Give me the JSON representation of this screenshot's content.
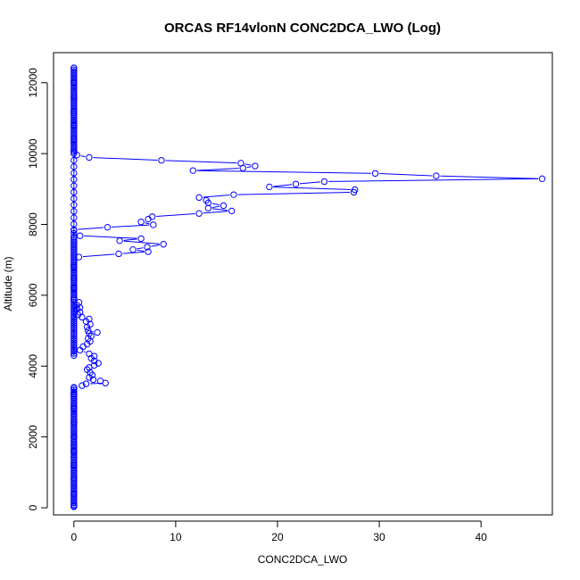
{
  "chart_data": {
    "type": "scatter",
    "title": "ORCAS RF14vlonN CONC2DCA_LWO (Log)",
    "xlabel": "CONC2DCA_LWO",
    "ylabel": "Altitude (m)",
    "xlim": [
      -2,
      47
    ],
    "ylim": [
      -200,
      12850
    ],
    "xticks": [
      "0",
      "10",
      "20",
      "30",
      "40"
    ],
    "xtick_values": [
      0,
      10,
      20,
      30,
      40
    ],
    "yticks": [
      "0",
      "2000",
      "4000",
      "6000",
      "8000",
      "10000",
      "12000"
    ],
    "ytick_values": [
      0,
      2000,
      4000,
      6000,
      8000,
      10000,
      12000
    ],
    "grid": false,
    "series_color": "#0000ff",
    "connected": true,
    "points": [
      {
        "x": 0,
        "y": 50
      },
      {
        "x": 0,
        "y": 400
      },
      {
        "x": 0,
        "y": 800
      },
      {
        "x": 0,
        "y": 1200
      },
      {
        "x": 0,
        "y": 1600
      },
      {
        "x": 0,
        "y": 2000
      },
      {
        "x": 0,
        "y": 2400
      },
      {
        "x": 0,
        "y": 2800
      },
      {
        "x": 0,
        "y": 3200
      },
      {
        "x": 0,
        "y": 3400
      },
      {
        "x": 0.8,
        "y": 3450
      },
      {
        "x": 1.2,
        "y": 3500
      },
      {
        "x": 3.1,
        "y": 3520
      },
      {
        "x": 2.6,
        "y": 3580
      },
      {
        "x": 1.9,
        "y": 3620
      },
      {
        "x": 1.5,
        "y": 3680
      },
      {
        "x": 1.8,
        "y": 3750
      },
      {
        "x": 1.6,
        "y": 3820
      },
      {
        "x": 1.3,
        "y": 3900
      },
      {
        "x": 1.5,
        "y": 3960
      },
      {
        "x": 2.0,
        "y": 4020
      },
      {
        "x": 2.4,
        "y": 4080
      },
      {
        "x": 2.0,
        "y": 4150
      },
      {
        "x": 1.7,
        "y": 4220
      },
      {
        "x": 2.0,
        "y": 4280
      },
      {
        "x": 1.5,
        "y": 4350
      },
      {
        "x": 0.6,
        "y": 4450
      },
      {
        "x": 0.9,
        "y": 4550
      },
      {
        "x": 1.3,
        "y": 4620
      },
      {
        "x": 1.6,
        "y": 4700
      },
      {
        "x": 1.4,
        "y": 4780
      },
      {
        "x": 1.7,
        "y": 4850
      },
      {
        "x": 1.5,
        "y": 4920
      },
      {
        "x": 2.3,
        "y": 4950
      },
      {
        "x": 1.4,
        "y": 5000
      },
      {
        "x": 1.3,
        "y": 5100
      },
      {
        "x": 1.6,
        "y": 5180
      },
      {
        "x": 1.2,
        "y": 5260
      },
      {
        "x": 1.5,
        "y": 5330
      },
      {
        "x": 0.8,
        "y": 5380
      },
      {
        "x": 0.4,
        "y": 5450
      },
      {
        "x": 0.6,
        "y": 5520
      },
      {
        "x": 0.3,
        "y": 5620
      },
      {
        "x": 0.6,
        "y": 5650
      },
      {
        "x": 0.3,
        "y": 5720
      },
      {
        "x": 0.5,
        "y": 5800
      },
      {
        "x": 0,
        "y": 5900
      },
      {
        "x": 0,
        "y": 6200
      },
      {
        "x": 0,
        "y": 6500
      },
      {
        "x": 0,
        "y": 6800
      },
      {
        "x": 0.5,
        "y": 7080
      },
      {
        "x": 4.4,
        "y": 7170
      },
      {
        "x": 7.3,
        "y": 7230
      },
      {
        "x": 5.8,
        "y": 7290
      },
      {
        "x": 7.2,
        "y": 7360
      },
      {
        "x": 8.8,
        "y": 7440
      },
      {
        "x": 4.5,
        "y": 7540
      },
      {
        "x": 6.6,
        "y": 7600
      },
      {
        "x": 0.6,
        "y": 7680
      },
      {
        "x": 0,
        "y": 7750
      },
      {
        "x": 0,
        "y": 7850
      },
      {
        "x": 3.3,
        "y": 7920
      },
      {
        "x": 7.8,
        "y": 7990
      },
      {
        "x": 6.6,
        "y": 8070
      },
      {
        "x": 7.3,
        "y": 8150
      },
      {
        "x": 7.7,
        "y": 8220
      },
      {
        "x": 12.3,
        "y": 8310
      },
      {
        "x": 15.5,
        "y": 8380
      },
      {
        "x": 13.2,
        "y": 8460
      },
      {
        "x": 14.7,
        "y": 8530
      },
      {
        "x": 13.2,
        "y": 8610
      },
      {
        "x": 13.0,
        "y": 8680
      },
      {
        "x": 12.3,
        "y": 8760
      },
      {
        "x": 15.7,
        "y": 8840
      },
      {
        "x": 27.5,
        "y": 8910
      },
      {
        "x": 27.6,
        "y": 8980
      },
      {
        "x": 19.2,
        "y": 9060
      },
      {
        "x": 21.8,
        "y": 9140
      },
      {
        "x": 24.6,
        "y": 9210
      },
      {
        "x": 46.0,
        "y": 9290
      },
      {
        "x": 35.6,
        "y": 9370
      },
      {
        "x": 29.6,
        "y": 9440
      },
      {
        "x": 11.7,
        "y": 9520
      },
      {
        "x": 16.6,
        "y": 9590
      },
      {
        "x": 17.8,
        "y": 9650
      },
      {
        "x": 16.4,
        "y": 9730
      },
      {
        "x": 8.6,
        "y": 9810
      },
      {
        "x": 1.5,
        "y": 9890
      },
      {
        "x": 0.3,
        "y": 9960
      },
      {
        "x": 0,
        "y": 10050
      },
      {
        "x": 0,
        "y": 10400
      },
      {
        "x": 0,
        "y": 10800
      },
      {
        "x": 0,
        "y": 11200
      },
      {
        "x": 0,
        "y": 11600
      },
      {
        "x": 0,
        "y": 12000
      },
      {
        "x": 0,
        "y": 12420
      }
    ],
    "dense_columns": [
      {
        "x": 0,
        "y_from": 30,
        "y_to": 3420,
        "step": 55
      },
      {
        "x": 0,
        "y_from": 4300,
        "y_to": 5900,
        "step": 60
      },
      {
        "x": 0,
        "y_from": 5900,
        "y_to": 7650,
        "step": 55
      },
      {
        "x": 0,
        "y_from": 7650,
        "y_to": 9950,
        "step": 180
      },
      {
        "x": 0,
        "y_from": 10000,
        "y_to": 12420,
        "step": 55
      }
    ]
  }
}
